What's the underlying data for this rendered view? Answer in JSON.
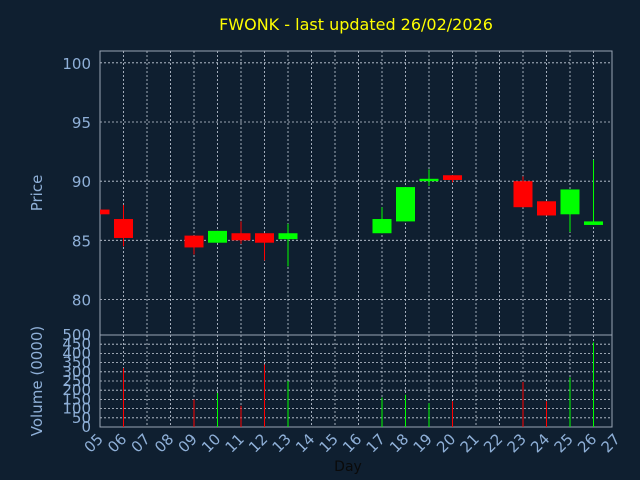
{
  "colors": {
    "background": "#0f1f30",
    "title": "#ffff00",
    "axis_text": "#8fb0d8",
    "label_text": "#0a0a0a",
    "frame": "#9aa5b5",
    "grid": "#c8d0dc",
    "up": "#00ff00",
    "down": "#ff0000"
  },
  "chart_data": {
    "type": "candlestick",
    "title": "FWONK - last updated 26/02/2026",
    "xlabel": "Day",
    "price_panel": {
      "ylabel": "Price",
      "ylim": [
        77,
        101
      ],
      "yticks": [
        80,
        85,
        90,
        95,
        100
      ]
    },
    "volume_panel": {
      "ylabel": "Volume (0000)",
      "ylim": [
        0,
        500
      ],
      "yticks": [
        0,
        50,
        100,
        150,
        200,
        250,
        300,
        350,
        400,
        450,
        500
      ]
    },
    "x_ticks": [
      "05",
      "06",
      "07",
      "08",
      "09",
      "10",
      "11",
      "12",
      "13",
      "14",
      "15",
      "16",
      "17",
      "18",
      "19",
      "20",
      "21",
      "22",
      "23",
      "24",
      "25",
      "26",
      "27"
    ],
    "grid": true,
    "candles": [
      {
        "day": "05",
        "open": 87.6,
        "close": 87.2,
        "high": 87.6,
        "low": 87.2,
        "volume": 0
      },
      {
        "day": "06",
        "open": 86.8,
        "close": 85.2,
        "high": 88.0,
        "low": 84.5,
        "volume": 320
      },
      {
        "day": "09",
        "open": 85.4,
        "close": 84.4,
        "high": 85.4,
        "low": 83.8,
        "volume": 150
      },
      {
        "day": "10",
        "open": 84.8,
        "close": 85.8,
        "high": 85.8,
        "low": 84.8,
        "volume": 185
      },
      {
        "day": "11",
        "open": 85.6,
        "close": 85.0,
        "high": 86.6,
        "low": 84.7,
        "volume": 115
      },
      {
        "day": "12",
        "open": 85.6,
        "close": 84.8,
        "high": 85.6,
        "low": 83.3,
        "volume": 340
      },
      {
        "day": "13",
        "open": 85.1,
        "close": 85.6,
        "high": 86.4,
        "low": 82.8,
        "volume": 250
      },
      {
        "day": "17",
        "open": 85.6,
        "close": 86.8,
        "high": 87.8,
        "low": 85.6,
        "volume": 160
      },
      {
        "day": "18",
        "open": 86.6,
        "close": 89.5,
        "high": 89.5,
        "low": 86.6,
        "volume": 175
      },
      {
        "day": "19",
        "open": 90.0,
        "close": 90.2,
        "high": 91.0,
        "low": 89.6,
        "volume": 130
      },
      {
        "day": "20",
        "open": 90.5,
        "close": 90.1,
        "high": 90.5,
        "low": 89.9,
        "volume": 140
      },
      {
        "day": "23",
        "open": 90.0,
        "close": 87.8,
        "high": 90.4,
        "low": 87.8,
        "volume": 245
      },
      {
        "day": "24",
        "open": 88.3,
        "close": 87.1,
        "high": 88.3,
        "low": 87.1,
        "volume": 140
      },
      {
        "day": "25",
        "open": 87.2,
        "close": 89.3,
        "high": 89.3,
        "low": 85.7,
        "volume": 270
      },
      {
        "day": "26",
        "open": 86.3,
        "close": 86.6,
        "high": 91.8,
        "low": 86.3,
        "volume": 460
      }
    ]
  }
}
